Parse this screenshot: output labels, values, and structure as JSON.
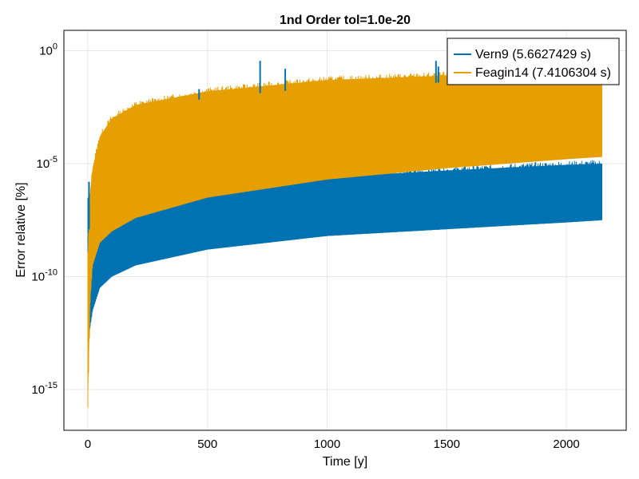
{
  "chart_data": {
    "type": "line",
    "title": "1nd Order tol=1.0e-20",
    "xlabel": "Time [y]",
    "ylabel": "Error relative [%]",
    "xlim": [
      -100,
      2250
    ],
    "ylim_log10": [
      -16.8,
      0.9
    ],
    "y_scale": "log10",
    "xticks": [
      0,
      500,
      1000,
      1500,
      2000
    ],
    "xtick_labels": [
      "0",
      "500",
      "1000",
      "1500",
      "2000"
    ],
    "yticks_log10": [
      0,
      -5,
      -10,
      -15
    ],
    "ytick_labels": [
      {
        "base": "10",
        "exp": "0"
      },
      {
        "base": "10",
        "exp": "-5"
      },
      {
        "base": "10",
        "exp": "-10"
      },
      {
        "base": "10",
        "exp": "-15"
      }
    ],
    "grid": true,
    "legend_position": "top-right",
    "series": [
      {
        "name": "Vern9 (5.6627429 s)",
        "color": "#0072b2",
        "style": "dense oscillating band",
        "x": [
          0,
          10,
          20,
          50,
          100,
          200,
          500,
          1000,
          1500,
          2000,
          2150
        ],
        "lower_log10": [
          -13.5,
          -12.2,
          -11.5,
          -10.5,
          -10.0,
          -9.5,
          -8.8,
          -8.2,
          -7.9,
          -7.6,
          -7.5
        ],
        "upper_log10": [
          -6.5,
          -8.0,
          -7.6,
          -7.0,
          -6.8,
          -6.5,
          -6.0,
          -5.6,
          -5.3,
          -5.05,
          -5.0
        ],
        "spikes": [
          {
            "x": 5,
            "log10": -5.8
          },
          {
            "x": 465,
            "log10": -1.7
          },
          {
            "x": 720,
            "log10": -0.45
          },
          {
            "x": 825,
            "log10": -0.8
          },
          {
            "x": 1455,
            "log10": -0.45
          },
          {
            "x": 1465,
            "log10": -0.7
          }
        ]
      },
      {
        "name": "Feagin14 (7.4106304 s)",
        "color": "#e69f00",
        "style": "dense oscillating band",
        "x": [
          0,
          10,
          20,
          50,
          100,
          200,
          500,
          1000,
          1500,
          2000,
          2150
        ],
        "lower_log10": [
          -15.8,
          -11.0,
          -9.5,
          -8.5,
          -8.0,
          -7.4,
          -6.5,
          -5.7,
          -5.2,
          -4.8,
          -4.7
        ],
        "upper_log10": [
          -9.0,
          -6.2,
          -5.2,
          -3.8,
          -3.0,
          -2.4,
          -1.8,
          -1.3,
          -1.1,
          -0.9,
          -0.85
        ]
      }
    ]
  }
}
